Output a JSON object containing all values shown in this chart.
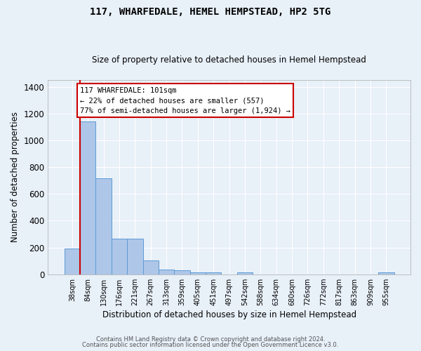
{
  "title": "117, WHARFEDALE, HEMEL HEMPSTEAD, HP2 5TG",
  "subtitle": "Size of property relative to detached houses in Hemel Hempstead",
  "xlabel": "Distribution of detached houses by size in Hemel Hempstead",
  "ylabel": "Number of detached properties",
  "bar_color": "#aec6e8",
  "bar_edge_color": "#5b9bd5",
  "vline_color": "#cc0000",
  "vline_x": 0.5,
  "annotation_text": "117 WHARFEDALE: 101sqm\n← 22% of detached houses are smaller (557)\n77% of semi-detached houses are larger (1,924) →",
  "annotation_box_color": "#ffffff",
  "annotation_box_edge": "#cc0000",
  "categories": [
    "38sqm",
    "84sqm",
    "130sqm",
    "176sqm",
    "221sqm",
    "267sqm",
    "313sqm",
    "359sqm",
    "405sqm",
    "451sqm",
    "497sqm",
    "542sqm",
    "588sqm",
    "634sqm",
    "680sqm",
    "726sqm",
    "772sqm",
    "817sqm",
    "863sqm",
    "909sqm",
    "955sqm"
  ],
  "values": [
    190,
    1140,
    715,
    265,
    265,
    105,
    35,
    28,
    14,
    14,
    0,
    16,
    0,
    0,
    0,
    0,
    0,
    0,
    0,
    0,
    14
  ],
  "ylim": [
    0,
    1450
  ],
  "yticks": [
    0,
    200,
    400,
    600,
    800,
    1000,
    1200,
    1400
  ],
  "footer1": "Contains HM Land Registry data © Crown copyright and database right 2024.",
  "footer2": "Contains public sector information licensed under the Open Government Licence v3.0.",
  "background_color": "#e8f0f8",
  "plot_background": "#e8f0f8",
  "grid_color": "#ffffff",
  "title_fontsize": 10,
  "subtitle_fontsize": 8.5,
  "ylabel_fontsize": 8.5,
  "xlabel_fontsize": 8.5,
  "ytick_fontsize": 8.5,
  "xtick_fontsize": 7,
  "annotation_fontsize": 7.5
}
